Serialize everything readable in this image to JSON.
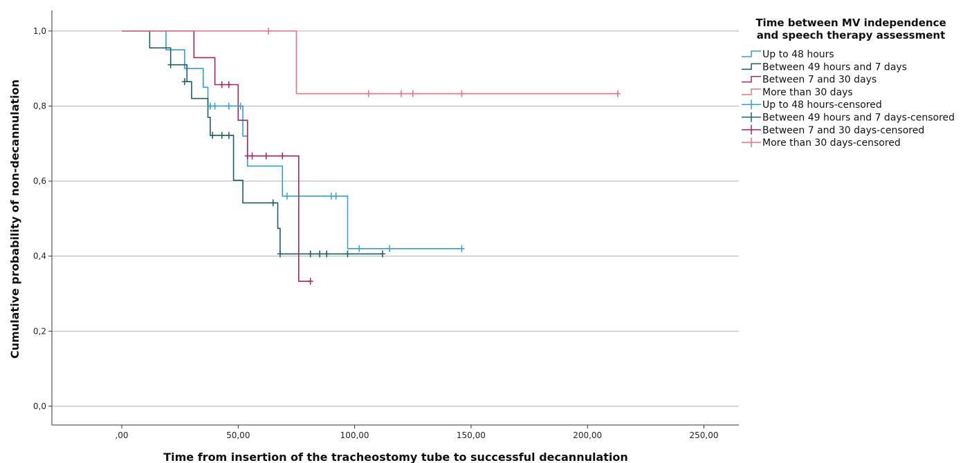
{
  "chart_data": {
    "type": "line",
    "subtype": "kaplan-meier",
    "xlabel": "Time from insertion of the tracheostomy tube to successful decannulation",
    "ylabel": "Cumulative probability of non-decannulation",
    "xlim": [
      -30,
      265
    ],
    "ylim": [
      -0.05,
      1.055
    ],
    "x_ticks": [
      0,
      50,
      100,
      150,
      200,
      250
    ],
    "x_tick_labels": [
      ",00",
      "50,00",
      "100,00",
      "150,00",
      "200,00",
      "250,00"
    ],
    "y_ticks": [
      0,
      0.2,
      0.4,
      0.6,
      0.8,
      1.0
    ],
    "y_tick_labels": [
      "0,0",
      "0,2",
      "0,4",
      "0,6",
      "0,8",
      "1,0"
    ],
    "grid": "horizontal",
    "legend": {
      "title_lines": [
        "Time between MV independence",
        "and speech therapy assessment"
      ],
      "placement": "top-right, outside plot",
      "entries": [
        {
          "label": "Up to 48 hours",
          "series": 0,
          "marker": "step"
        },
        {
          "label": "Between 49 hours and 7 days",
          "series": 1,
          "marker": "step"
        },
        {
          "label": "Between 7 and 30 days",
          "series": 2,
          "marker": "step"
        },
        {
          "label": "More than 30 days",
          "series": 3,
          "marker": "step"
        },
        {
          "label": "Up to 48 hours-censored",
          "series": 0,
          "marker": "plus"
        },
        {
          "label": "Between 49 hours and 7 days-censored",
          "series": 1,
          "marker": "plus"
        },
        {
          "label": "Between 7 and 30 days-censored",
          "series": 2,
          "marker": "plus"
        },
        {
          "label": "More than 30 days-censored",
          "series": 3,
          "marker": "plus"
        }
      ]
    },
    "series": [
      {
        "name": "Up to 48 hours",
        "color": "#2f9fd8",
        "steps": [
          [
            0,
            1.0
          ],
          [
            19,
            0.95
          ],
          [
            27,
            0.9
          ],
          [
            35,
            0.85
          ],
          [
            37,
            0.8
          ],
          [
            52,
            0.72
          ],
          [
            54,
            0.64
          ],
          [
            69,
            0.56
          ],
          [
            97,
            0.42
          ],
          [
            146,
            0.42
          ]
        ],
        "censored": [
          [
            38,
            0.8
          ],
          [
            40,
            0.8
          ],
          [
            46,
            0.8
          ],
          [
            51,
            0.8
          ],
          [
            71,
            0.56
          ],
          [
            90,
            0.56
          ],
          [
            92,
            0.56
          ],
          [
            102,
            0.42
          ],
          [
            115,
            0.42
          ],
          [
            146,
            0.42
          ]
        ]
      },
      {
        "name": "Between 49 hours and 7 days",
        "color": "#1a5e5e",
        "steps": [
          [
            0,
            1.0
          ],
          [
            12,
            0.955
          ],
          [
            21,
            0.91
          ],
          [
            28,
            0.865
          ],
          [
            30,
            0.82
          ],
          [
            37,
            0.77
          ],
          [
            38,
            0.722
          ],
          [
            48,
            0.602
          ],
          [
            52,
            0.542
          ],
          [
            67,
            0.474
          ],
          [
            68,
            0.406
          ],
          [
            112,
            0.406
          ]
        ],
        "censored": [
          [
            21,
            0.91
          ],
          [
            27,
            0.865
          ],
          [
            39,
            0.722
          ],
          [
            43,
            0.722
          ],
          [
            46,
            0.722
          ],
          [
            65,
            0.542
          ],
          [
            68,
            0.406
          ],
          [
            81,
            0.406
          ],
          [
            85,
            0.406
          ],
          [
            88,
            0.406
          ],
          [
            97,
            0.406
          ],
          [
            112,
            0.406
          ]
        ]
      },
      {
        "name": "Between 7 and 30 days",
        "color": "#a8225c",
        "steps": [
          [
            0,
            1.0
          ],
          [
            31,
            0.929
          ],
          [
            40,
            0.857
          ],
          [
            50,
            0.762
          ],
          [
            54,
            0.667
          ],
          [
            76,
            0.333
          ],
          [
            81,
            0.333
          ]
        ],
        "censored": [
          [
            43,
            0.857
          ],
          [
            46,
            0.857
          ],
          [
            54,
            0.667
          ],
          [
            56,
            0.667
          ],
          [
            62,
            0.667
          ],
          [
            69,
            0.667
          ],
          [
            81,
            0.333
          ]
        ]
      },
      {
        "name": "More than 30 days",
        "color": "#f07080",
        "steps": [
          [
            0,
            1.0
          ],
          [
            75,
            0.833
          ],
          [
            213,
            0.833
          ]
        ],
        "censored": [
          [
            63,
            1.0
          ],
          [
            106,
            0.833
          ],
          [
            120,
            0.833
          ],
          [
            125,
            0.833
          ],
          [
            146,
            0.833
          ],
          [
            213,
            0.833
          ]
        ]
      }
    ]
  }
}
